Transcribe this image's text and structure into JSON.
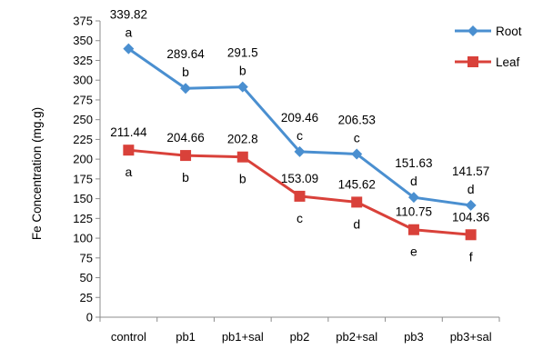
{
  "chart_data": {
    "type": "line",
    "title": "",
    "xlabel": "",
    "ylabel": "Fe Concentration (mg.g)",
    "ylim": [
      0,
      375
    ],
    "ytick_step": 25,
    "categories": [
      "control",
      "pb1",
      "pb1+sal",
      "pb2",
      "pb2+sal",
      "pb3",
      "pb3+sal"
    ],
    "grid": false,
    "legend_position": "top-right",
    "series": [
      {
        "name": "Root",
        "color": "#4A8FD0",
        "marker": "diamond",
        "values": [
          339.82,
          289.64,
          291.5,
          209.46,
          206.53,
          151.63,
          141.57
        ],
        "value_labels": [
          "339.82",
          "289.64",
          "291.5",
          "209.46",
          "206.53",
          "151.63",
          "141.57"
        ],
        "letters": [
          "a",
          "b",
          "b",
          "c",
          "c",
          "d",
          "d"
        ]
      },
      {
        "name": "Leaf",
        "color": "#D9413A",
        "marker": "square",
        "values": [
          211.44,
          204.66,
          202.8,
          153.09,
          145.62,
          110.75,
          104.36
        ],
        "value_labels": [
          "211.44",
          "204.66",
          "202.8",
          "153.09",
          "145.62",
          "110.75",
          "104.36"
        ],
        "letters": [
          "a",
          "b",
          "b",
          "c",
          "d",
          "e",
          "f"
        ]
      }
    ]
  }
}
